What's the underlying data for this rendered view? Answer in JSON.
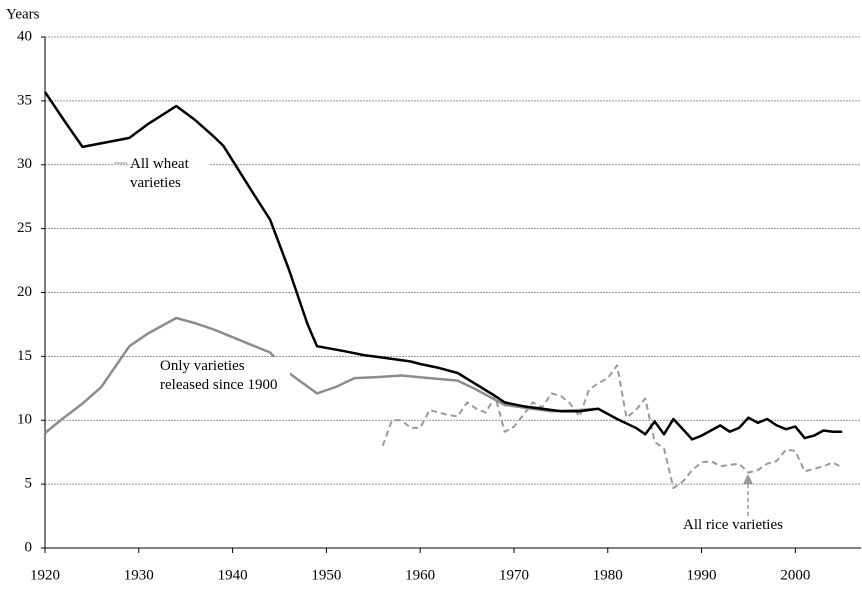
{
  "chart_data": {
    "type": "line",
    "y_axis_label": "Years",
    "xlim": [
      1920,
      2007
    ],
    "ylim": [
      0,
      40
    ],
    "xticks": [
      1920,
      1930,
      1940,
      1950,
      1960,
      1970,
      1980,
      1990,
      2000
    ],
    "yticks": [
      0,
      5,
      10,
      15,
      20,
      25,
      30,
      35,
      40
    ],
    "grid": true,
    "series": [
      {
        "name": "All wheat varieties",
        "color": "#000000",
        "style": "solid",
        "x": [
          1920,
          1922,
          1924,
          1929,
          1931,
          1934,
          1936,
          1938,
          1939,
          1942,
          1944,
          1946,
          1948,
          1949,
          1952,
          1954,
          1957,
          1959,
          1960,
          1962,
          1964,
          1966,
          1968,
          1969,
          1971,
          1973,
          1975,
          1977,
          1979,
          1981,
          1983,
          1984,
          1985,
          1986,
          1987,
          1989,
          1990,
          1992,
          1993,
          1994,
          1995,
          1996,
          1997,
          1998,
          1999,
          2000,
          2001,
          2002,
          2003,
          2004,
          2005
        ],
        "values": [
          35.7,
          33.5,
          31.4,
          32.1,
          33.2,
          34.6,
          33.5,
          32.2,
          31.5,
          28.0,
          25.7,
          21.8,
          17.5,
          15.8,
          15.4,
          15.1,
          14.8,
          14.6,
          14.4,
          14.1,
          13.7,
          12.8,
          11.9,
          11.4,
          11.1,
          10.9,
          10.7,
          10.7,
          10.9,
          10.1,
          9.4,
          8.9,
          9.9,
          8.9,
          10.1,
          8.5,
          8.8,
          9.6,
          9.1,
          9.4,
          10.2,
          9.8,
          10.1,
          9.6,
          9.3,
          9.5,
          8.6,
          8.8,
          9.2,
          9.1,
          9.1
        ]
      },
      {
        "name": "Only varieties released since 1900",
        "color": "#8c8c8c",
        "style": "solid",
        "x": [
          1920,
          1922,
          1924,
          1926,
          1929,
          1931,
          1934,
          1936,
          1938,
          1940,
          1944,
          1946,
          1949,
          1951,
          1953,
          1956,
          1958,
          1961,
          1964,
          1966,
          1969,
          1972,
          1974,
          1977,
          1979
        ],
        "values": [
          9.0,
          10.2,
          11.3,
          12.6,
          15.8,
          16.8,
          18.0,
          17.6,
          17.1,
          16.5,
          15.3,
          13.7,
          12.1,
          12.6,
          13.3,
          13.4,
          13.5,
          13.3,
          13.1,
          12.4,
          11.2,
          10.9,
          10.7,
          10.8,
          10.9
        ]
      },
      {
        "name": "All rice varieties",
        "color": "#9a9a9a",
        "style": "dashed",
        "x": [
          1956,
          1957,
          1958,
          1959,
          1960,
          1961,
          1962,
          1963,
          1964,
          1965,
          1966,
          1967,
          1968,
          1969,
          1970,
          1971,
          1972,
          1973,
          1974,
          1975,
          1976,
          1977,
          1978,
          1979,
          1980,
          1981,
          1982,
          1983,
          1984,
          1985,
          1986,
          1987,
          1988,
          1989,
          1990,
          1991,
          1992,
          1993,
          1994,
          1995,
          1996,
          1997,
          1998,
          1999,
          2000,
          2001,
          2002,
          2003,
          2004,
          2005
        ],
        "values": [
          8.0,
          10.0,
          10.0,
          9.4,
          9.4,
          10.8,
          10.6,
          10.4,
          10.3,
          11.4,
          10.9,
          10.6,
          11.9,
          9.1,
          9.5,
          10.4,
          11.4,
          11.0,
          12.1,
          11.9,
          11.3,
          10.3,
          12.4,
          12.9,
          13.3,
          14.3,
          10.2,
          10.8,
          11.7,
          8.3,
          7.8,
          4.7,
          5.2,
          6.1,
          6.7,
          6.8,
          6.4,
          6.5,
          6.6,
          5.9,
          6.1,
          6.6,
          6.8,
          7.7,
          7.6,
          6.0,
          6.2,
          6.4,
          6.7,
          6.3
        ]
      }
    ]
  }
}
